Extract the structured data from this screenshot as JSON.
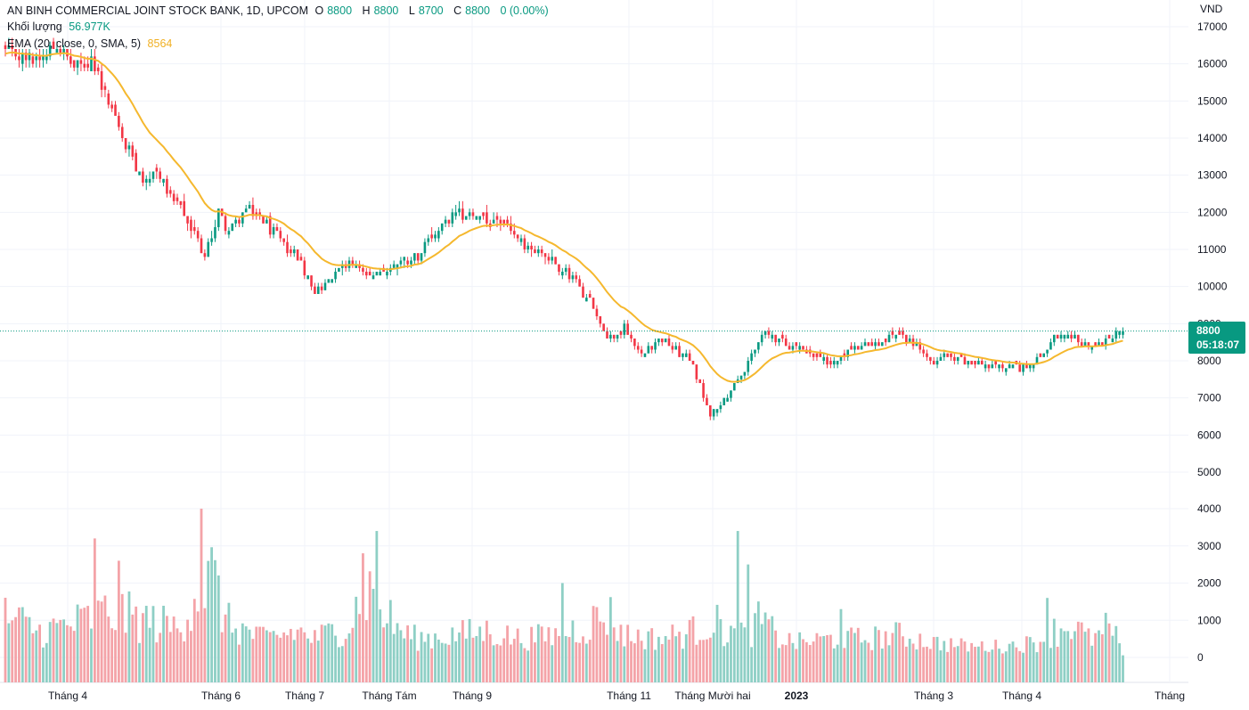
{
  "header": {
    "symbol": "AN BINH COMMERCIAL JOINT STOCK BANK, 1D, UPCOM",
    "open_label": "O",
    "open": "8800",
    "high_label": "H",
    "high": "8800",
    "low_label": "L",
    "low": "8700",
    "close_label": "C",
    "close": "8800",
    "change": "0 (0.00%)",
    "volume_label": "Khối lượng",
    "volume_value": "56.977K",
    "ema_label": "EMA (20, close, 0, SMA, 5)",
    "ema_value": "8564"
  },
  "price_badge": {
    "price": "8800",
    "countdown": "05:18:07"
  },
  "colors": {
    "up": "#089981",
    "down": "#f23645",
    "vol_up": "#8ecfc5",
    "vol_down": "#f4a3a8",
    "ema": "#f5b82e",
    "grid": "#f0f3fa"
  },
  "chart_data": {
    "type": "candlestick",
    "currency": "VND",
    "y_ticks": [
      "17000",
      "16000",
      "15000",
      "14000",
      "13000",
      "12000",
      "11000",
      "10000",
      "9000",
      "8000",
      "7000",
      "6000",
      "5000",
      "4000",
      "3000",
      "2000",
      "1000",
      "0"
    ],
    "x_ticks": [
      {
        "label": "Tháng 4",
        "bold": false
      },
      {
        "label": "Tháng 6",
        "bold": false
      },
      {
        "label": "Tháng 7",
        "bold": false
      },
      {
        "label": "Tháng Tám",
        "bold": false
      },
      {
        "label": "Tháng 9",
        "bold": false
      },
      {
        "label": "Tháng 11",
        "bold": false
      },
      {
        "label": "Tháng Mười hai",
        "bold": false
      },
      {
        "label": "2023",
        "bold": true
      },
      {
        "label": "Tháng 3",
        "bold": false
      },
      {
        "label": "Tháng 4",
        "bold": false
      },
      {
        "label": "Tháng",
        "bold": false
      }
    ],
    "last_price": 8800,
    "close_anchors": [
      [
        0,
        16300
      ],
      [
        8,
        16100
      ],
      [
        15,
        16500
      ],
      [
        20,
        15900
      ],
      [
        25,
        16100
      ],
      [
        30,
        15000
      ],
      [
        35,
        13800
      ],
      [
        40,
        12900
      ],
      [
        45,
        13000
      ],
      [
        50,
        12200
      ],
      [
        55,
        11400
      ],
      [
        58,
        10800
      ],
      [
        62,
        12000
      ],
      [
        65,
        11500
      ],
      [
        70,
        12100
      ],
      [
        75,
        11800
      ],
      [
        80,
        11200
      ],
      [
        85,
        10800
      ],
      [
        90,
        9900
      ],
      [
        95,
        10200
      ],
      [
        100,
        10700
      ],
      [
        105,
        10300
      ],
      [
        110,
        10300
      ],
      [
        115,
        10700
      ],
      [
        120,
        10800
      ],
      [
        125,
        11400
      ],
      [
        130,
        11900
      ],
      [
        135,
        12000
      ],
      [
        140,
        11700
      ],
      [
        145,
        11700
      ],
      [
        150,
        11200
      ],
      [
        155,
        11000
      ],
      [
        160,
        10600
      ],
      [
        165,
        10200
      ],
      [
        170,
        9600
      ],
      [
        175,
        8600
      ],
      [
        180,
        8900
      ],
      [
        185,
        8200
      ],
      [
        190,
        8600
      ],
      [
        195,
        8300
      ],
      [
        200,
        7900
      ],
      [
        205,
        6500
      ],
      [
        210,
        7100
      ],
      [
        215,
        7700
      ],
      [
        220,
        8800
      ],
      [
        225,
        8500
      ],
      [
        230,
        8400
      ],
      [
        235,
        8100
      ],
      [
        240,
        7900
      ],
      [
        245,
        8200
      ],
      [
        250,
        8400
      ],
      [
        255,
        8500
      ],
      [
        260,
        8700
      ],
      [
        265,
        8400
      ],
      [
        270,
        8000
      ],
      [
        275,
        8200
      ],
      [
        280,
        7900
      ],
      [
        285,
        7900
      ],
      [
        290,
        7900
      ],
      [
        295,
        7800
      ],
      [
        300,
        8000
      ],
      [
        305,
        8600
      ],
      [
        310,
        8600
      ],
      [
        315,
        8400
      ],
      [
        320,
        8500
      ],
      [
        325,
        8800
      ]
    ],
    "volume_anchors": [
      [
        0,
        1100
      ],
      [
        10,
        700
      ],
      [
        20,
        900
      ],
      [
        30,
        1200
      ],
      [
        40,
        1000
      ],
      [
        50,
        800
      ],
      [
        55,
        1700
      ],
      [
        60,
        2100
      ],
      [
        65,
        900
      ],
      [
        70,
        700
      ],
      [
        75,
        500
      ],
      [
        80,
        600
      ],
      [
        85,
        700
      ],
      [
        90,
        500
      ],
      [
        95,
        700
      ],
      [
        100,
        900
      ],
      [
        105,
        1900
      ],
      [
        110,
        1200
      ],
      [
        115,
        700
      ],
      [
        120,
        500
      ],
      [
        130,
        600
      ],
      [
        140,
        700
      ],
      [
        150,
        500
      ],
      [
        160,
        600
      ],
      [
        170,
        900
      ],
      [
        175,
        1200
      ],
      [
        180,
        600
      ],
      [
        190,
        500
      ],
      [
        200,
        700
      ],
      [
        205,
        1000
      ],
      [
        210,
        700
      ],
      [
        215,
        600
      ],
      [
        220,
        1000
      ],
      [
        225,
        500
      ],
      [
        230,
        400
      ],
      [
        240,
        500
      ],
      [
        250,
        500
      ],
      [
        260,
        600
      ],
      [
        270,
        400
      ],
      [
        280,
        300
      ],
      [
        290,
        300
      ],
      [
        300,
        400
      ],
      [
        305,
        700
      ],
      [
        310,
        900
      ],
      [
        315,
        500
      ],
      [
        320,
        600
      ],
      [
        325,
        500
      ]
    ],
    "volume_spikes": [
      [
        26,
        3200
      ],
      [
        33,
        2600
      ],
      [
        57,
        4000
      ],
      [
        104,
        2800
      ],
      [
        108,
        3400
      ],
      [
        162,
        2000
      ],
      [
        213,
        3400
      ],
      [
        216,
        2500
      ],
      [
        243,
        1300
      ],
      [
        303,
        1600
      ],
      [
        320,
        1200
      ]
    ],
    "price_axis": {
      "min": 5000,
      "max": 17000
    },
    "volume_axis": {
      "min": 0,
      "max": 4000
    }
  }
}
